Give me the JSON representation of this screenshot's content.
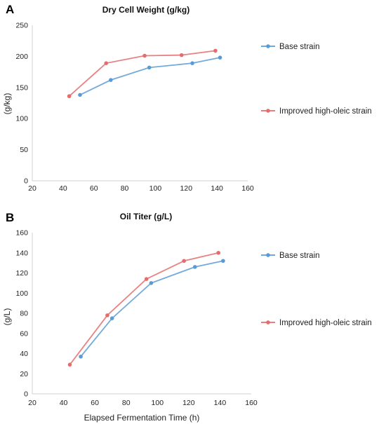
{
  "colors": {
    "base": "#5b9bd5",
    "improved": "#e46c6c",
    "axis": "#d0d0d0"
  },
  "chart_data": [
    {
      "panel": "A",
      "type": "line",
      "title": "Dry Cell Weight (g/kg)",
      "xlabel": "",
      "ylabel": "(g/kg)",
      "xlim": [
        20,
        160
      ],
      "ylim": [
        0,
        250
      ],
      "xticks": [
        20,
        40,
        60,
        80,
        100,
        120,
        140,
        160
      ],
      "yticks": [
        0,
        50,
        100,
        150,
        200,
        250
      ],
      "grid": false,
      "legend": "right",
      "series": [
        {
          "name": "Base strain",
          "color": "#5b9bd5",
          "x": [
            51,
            71,
            96,
            124,
            142
          ],
          "y": [
            138,
            162,
            182,
            189,
            198
          ]
        },
        {
          "name": "Improved high-oleic strain",
          "color": "#e46c6c",
          "x": [
            44,
            68,
            93,
            117,
            139
          ],
          "y": [
            136,
            189,
            201,
            202,
            209
          ]
        }
      ]
    },
    {
      "panel": "B",
      "type": "line",
      "title": "Oil Titer (g/L)",
      "xlabel": "Elapsed Fermentation Time (h)",
      "ylabel": "(g/L)",
      "xlim": [
        20,
        160
      ],
      "ylim": [
        0,
        160
      ],
      "xticks": [
        20,
        40,
        60,
        80,
        100,
        120,
        140,
        160
      ],
      "yticks": [
        0,
        20,
        40,
        60,
        80,
        100,
        120,
        140,
        160
      ],
      "grid": false,
      "legend": "right",
      "series": [
        {
          "name": "Base strain",
          "color": "#5b9bd5",
          "x": [
            51,
            71,
            96,
            124,
            142
          ],
          "y": [
            37,
            75,
            110,
            126,
            132
          ]
        },
        {
          "name": "Improved high-oleic strain",
          "color": "#e46c6c",
          "x": [
            44,
            68,
            93,
            117,
            139
          ],
          "y": [
            29,
            78,
            114,
            132,
            140
          ]
        }
      ]
    }
  ]
}
